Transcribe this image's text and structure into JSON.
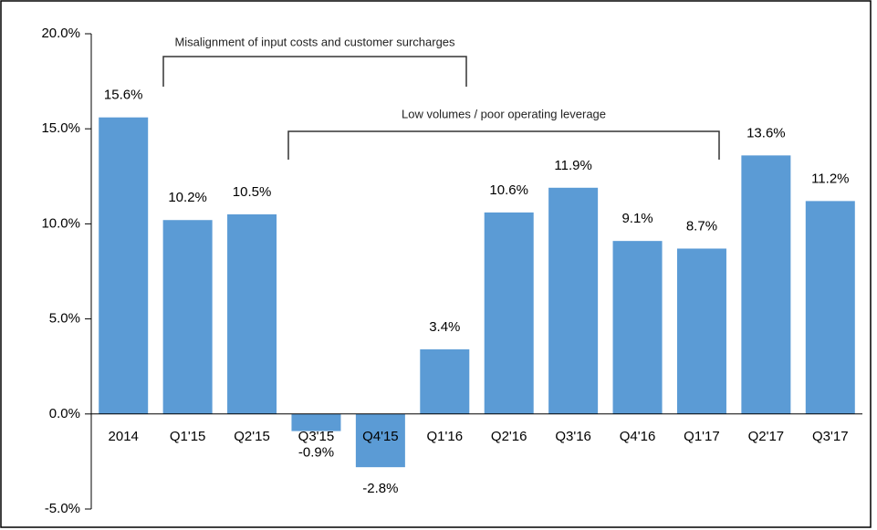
{
  "chart_data": {
    "type": "bar",
    "categories": [
      "2014",
      "Q1'15",
      "Q2'15",
      "Q3'15",
      "Q4'15",
      "Q1'16",
      "Q2'16",
      "Q3'16",
      "Q4'16",
      "Q1'17",
      "Q2'17",
      "Q3'17"
    ],
    "values": [
      15.6,
      10.2,
      10.5,
      -0.9,
      -2.8,
      3.4,
      10.6,
      11.9,
      9.1,
      8.7,
      13.6,
      11.2
    ],
    "value_labels": [
      "15.6%",
      "10.2%",
      "10.5%",
      "-0.9%",
      "-2.8%",
      "3.4%",
      "10.6%",
      "11.9%",
      "9.1%",
      "8.7%",
      "13.6%",
      "11.2%"
    ],
    "color": "#5b9bd5",
    "ylim": [
      -5,
      20
    ],
    "yticks": [
      {
        "value": -5,
        "label": "-5.0%"
      },
      {
        "value": 0,
        "label": "0.0%"
      },
      {
        "value": 5,
        "label": "5.0%"
      },
      {
        "value": 10,
        "label": "10.0%"
      },
      {
        "value": 15,
        "label": "15.0%"
      },
      {
        "value": 20,
        "label": "20.0%"
      }
    ],
    "annotations": [
      "Misalignment of input costs and customer surcharges",
      "Low volumes / poor operating leverage"
    ]
  }
}
